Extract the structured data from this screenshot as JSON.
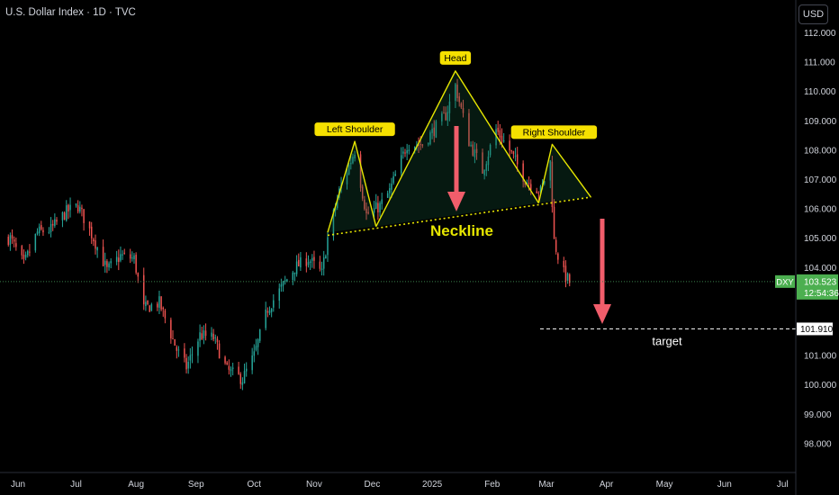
{
  "header": {
    "title": "U.S. Dollar Index · 1D · TVC",
    "currency": "USD"
  },
  "colors": {
    "bg": "#000000",
    "up": "#26a69a",
    "down": "#ef5350",
    "pattern": "#e6e600",
    "arrow": "#f15d6b",
    "grid_text": "#d1d4dc",
    "price_tag": "#4caf50",
    "target_line": "#ffffff"
  },
  "price_tag": {
    "symbol": "DXY",
    "price": "103.523",
    "countdown": "12:54:36"
  },
  "target": {
    "value": "101.910",
    "label": "target"
  },
  "annotations": {
    "left_shoulder": "Left Shoulder",
    "head": "Head",
    "right_shoulder": "Right Shoulder",
    "neckline": "Neckline"
  },
  "chart_data": {
    "type": "candlestick",
    "y_axis": {
      "ticks": [
        "112.000",
        "111.000",
        "110.000",
        "109.000",
        "108.000",
        "107.000",
        "106.000",
        "105.000",
        "104.000",
        "101.000",
        "100.000",
        "99.000",
        "98.000"
      ],
      "range": [
        97.0,
        112.7
      ]
    },
    "x_axis": {
      "ticks": [
        "Jun",
        "Jul",
        "Aug",
        "Sep",
        "Oct",
        "Nov",
        "Dec",
        "2025",
        "Feb",
        "Mar",
        "Apr",
        "May",
        "Jun",
        "Jul"
      ]
    },
    "anchors": [
      [
        "05-28",
        105.0
      ],
      [
        "06-04",
        104.1
      ],
      [
        "06-11",
        105.2
      ],
      [
        "06-18",
        105.3
      ],
      [
        "06-26",
        105.9
      ],
      [
        "07-02",
        106.1
      ],
      [
        "07-10",
        105.0
      ],
      [
        "07-17",
        103.9
      ],
      [
        "07-24",
        104.4
      ],
      [
        "07-31",
        104.3
      ],
      [
        "08-05",
        102.6
      ],
      [
        "08-13",
        102.8
      ],
      [
        "08-22",
        101.2
      ],
      [
        "08-27",
        100.6
      ],
      [
        "09-03",
        101.7
      ],
      [
        "09-10",
        101.6
      ],
      [
        "09-17",
        100.5
      ],
      [
        "09-25",
        100.2
      ],
      [
        "10-01",
        101.0
      ],
      [
        "10-08",
        102.6
      ],
      [
        "10-15",
        103.3
      ],
      [
        "10-22",
        104.0
      ],
      [
        "10-29",
        104.3
      ],
      [
        "11-05",
        103.8
      ],
      [
        "11-08",
        105.0
      ],
      [
        "11-14",
        106.6
      ],
      [
        "11-22",
        108.0
      ],
      [
        "11-28",
        105.8
      ],
      [
        "12-05",
        106.1
      ],
      [
        "12-10",
        106.6
      ],
      [
        "12-19",
        108.2
      ],
      [
        "12-27",
        108.2
      ],
      [
        "01-08",
        109.2
      ],
      [
        "01-13",
        110.2
      ],
      [
        "01-20",
        108.3
      ],
      [
        "01-27",
        107.3
      ],
      [
        "02-03",
        108.7
      ],
      [
        "02-10",
        108.0
      ],
      [
        "02-18",
        107.0
      ],
      [
        "02-26",
        106.6
      ],
      [
        "03-03",
        107.6
      ],
      [
        "03-05",
        104.9
      ],
      [
        "03-09",
        103.9
      ],
      [
        "03-13",
        103.5
      ]
    ],
    "pattern_lines": [
      {
        "name": "left-shoulder",
        "points": [
          [
            "11-08",
            105.2
          ],
          [
            "11-22",
            108.3
          ],
          [
            "12-03",
            105.4
          ]
        ]
      },
      {
        "name": "head",
        "points": [
          [
            "12-03",
            105.4
          ],
          [
            "01-13",
            110.7
          ],
          [
            "02-25",
            106.2
          ]
        ]
      },
      {
        "name": "right-shoulder",
        "points": [
          [
            "02-25",
            106.2
          ],
          [
            "03-04",
            108.2
          ],
          [
            "03-24",
            106.4
          ]
        ]
      },
      {
        "name": "neckline",
        "points": [
          [
            "11-08",
            105.1
          ],
          [
            "03-24",
            106.4
          ]
        ]
      }
    ],
    "target_price": 101.91,
    "last_price": 103.523
  }
}
